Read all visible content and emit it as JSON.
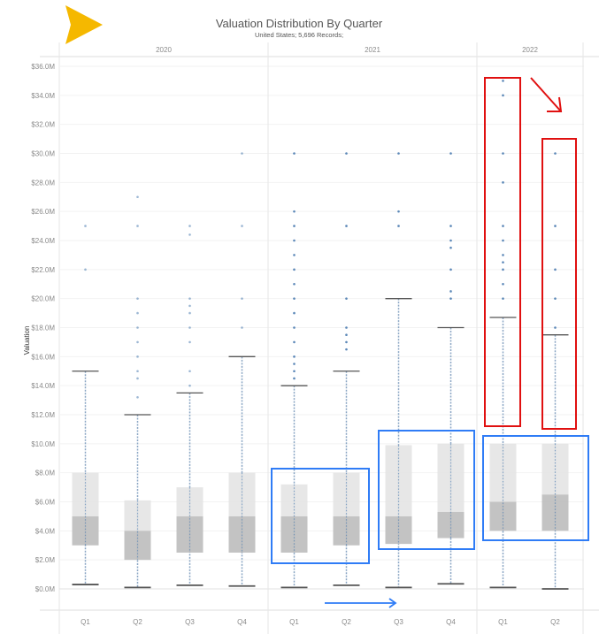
{
  "chart_data": {
    "type": "boxplot",
    "title": "Valuation Distribution By Quarter",
    "subtitle": "United States; 5,696 Records;",
    "ylabel": "Valuation",
    "xlabel": "",
    "ylim": [
      -1.5,
      36.5
    ],
    "yticks": [
      0,
      2,
      4,
      6,
      8,
      10,
      12,
      14,
      16,
      18,
      20,
      22,
      24,
      26,
      28,
      30,
      32,
      34,
      36
    ],
    "ytick_labels": [
      "$0.0M",
      "$2.0M",
      "$4.0M",
      "$6.0M",
      "$8.0M",
      "$10.0M",
      "$12.0M",
      "$14.0M",
      "$16.0M",
      "$18.0M",
      "$20.0M",
      "$22.0M",
      "$24.0M",
      "$26.0M",
      "$28.0M",
      "$30.0M",
      "$32.0M",
      "$34.0M",
      "$36.0M"
    ],
    "grid": true,
    "unit": "$M",
    "years": [
      {
        "label": "2020",
        "quarters": [
          {
            "label": "Q1",
            "low": 0.3,
            "q1": 3.0,
            "median": 5.0,
            "q3": 8.0,
            "high": 15.0,
            "outliers": [
              22,
              25
            ]
          },
          {
            "label": "Q2",
            "low": 0.1,
            "q1": 2.0,
            "median": 4.0,
            "q3": 6.1,
            "high": 12.0,
            "outliers": [
              13.2,
              14.5,
              15,
              16,
              17,
              18,
              19,
              20,
              25,
              27
            ]
          },
          {
            "label": "Q3",
            "low": 0.25,
            "q1": 2.5,
            "median": 5.0,
            "q3": 7.0,
            "high": 13.5,
            "outliers": [
              14,
              15,
              17,
              18,
              19,
              19.5,
              20,
              24.4,
              25
            ]
          },
          {
            "label": "Q4",
            "low": 0.2,
            "q1": 2.5,
            "median": 5.0,
            "q3": 8.0,
            "high": 16.0,
            "outliers": [
              18,
              20,
              25,
              30
            ]
          }
        ]
      },
      {
        "label": "2021",
        "quarters": [
          {
            "label": "Q1",
            "low": 0.1,
            "q1": 2.5,
            "median": 5.0,
            "q3": 7.2,
            "high": 14.0,
            "outliers": [
              14.5,
              15,
              15.5,
              16,
              17,
              18,
              19,
              20,
              21,
              22,
              23,
              24,
              25,
              26,
              30
            ]
          },
          {
            "label": "Q2",
            "low": 0.25,
            "q1": 3.0,
            "median": 5.0,
            "q3": 8.0,
            "high": 15.0,
            "outliers": [
              16.5,
              17,
              17.5,
              18,
              20,
              25,
              30
            ]
          },
          {
            "label": "Q3",
            "low": 0.1,
            "q1": 3.1,
            "median": 5.0,
            "q3": 9.9,
            "high": 20.0,
            "outliers": [
              25,
              26,
              30
            ]
          },
          {
            "label": "Q4",
            "low": 0.35,
            "q1": 3.5,
            "median": 5.3,
            "q3": 10.0,
            "high": 18.0,
            "outliers": [
              20,
              20.5,
              22,
              23.5,
              24,
              25,
              30
            ]
          }
        ]
      },
      {
        "label": "2022",
        "quarters": [
          {
            "label": "Q1",
            "low": 0.1,
            "q1": 4.0,
            "median": 6.0,
            "q3": 10.0,
            "high": 18.7,
            "outliers": [
              20,
              21,
              22,
              22.5,
              23,
              24,
              25,
              28,
              30,
              34,
              35
            ]
          },
          {
            "label": "Q2",
            "low": 0.0,
            "q1": 4.0,
            "median": 6.5,
            "q3": 10.0,
            "high": 17.5,
            "outliers": [
              18,
              20,
              22,
              25,
              30
            ]
          }
        ]
      }
    ],
    "colors": {
      "box_upper": "#e3e3e3",
      "box_lower": "#bcbcbc",
      "whisker": "#555555",
      "points": "#4a7bb0",
      "annotation_red": "#e01010",
      "annotation_blue": "#2f7cf6",
      "logo": "#f5b800"
    }
  }
}
